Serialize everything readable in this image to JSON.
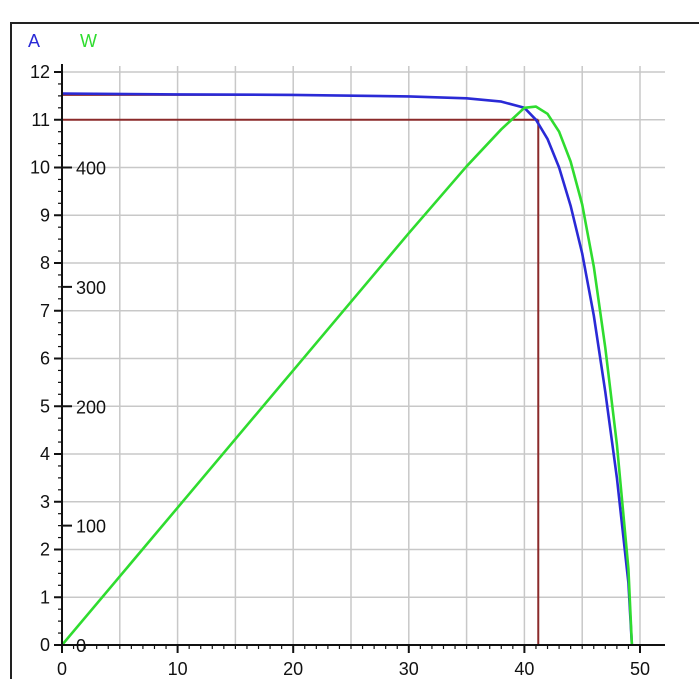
{
  "chart_data": {
    "type": "line",
    "title": "",
    "xlabel": "",
    "ylabel": "",
    "xlim": [
      0,
      50
    ],
    "ylim": [
      0,
      12
    ],
    "y2lim": [
      0,
      480
    ],
    "grid": true,
    "legend": [
      "A",
      "W"
    ],
    "legend_placement": "top-left",
    "x_ticks": [
      "0",
      "10",
      "20",
      "30",
      "40",
      "50"
    ],
    "y_ticks": [
      "0",
      "1",
      "2",
      "3",
      "4",
      "5",
      "6",
      "7",
      "8",
      "9",
      "10",
      "11",
      "12"
    ],
    "y2_ticks": [
      "0",
      "100",
      "200",
      "300",
      "400"
    ],
    "series": [
      {
        "name": "A",
        "axis": "left",
        "color": "#2a2ad6",
        "x": [
          0,
          10,
          20,
          30,
          35,
          38,
          40,
          41,
          42,
          43,
          44,
          45,
          46,
          47,
          48,
          49,
          49.3
        ],
        "y": [
          11.55,
          11.53,
          11.52,
          11.49,
          11.45,
          11.38,
          11.25,
          11.0,
          10.6,
          10.0,
          9.2,
          8.2,
          6.9,
          5.3,
          3.5,
          1.3,
          0
        ]
      },
      {
        "name": "W",
        "axis": "right",
        "color": "#2fdc2f",
        "x": [
          0,
          10,
          20,
          30,
          35,
          38,
          40,
          41,
          42,
          43,
          44,
          45,
          46,
          47,
          48,
          49,
          49.3
        ],
        "y": [
          0,
          115,
          230,
          345,
          401,
          432,
          450,
          451,
          445,
          430,
          405,
          369,
          317,
          249,
          168,
          64,
          0
        ]
      }
    ],
    "reference_lines": {
      "color": "#8b2a2a",
      "mpp_voltage": 41.2,
      "mpp_current": 11.0,
      "isc": 11.52
    }
  }
}
